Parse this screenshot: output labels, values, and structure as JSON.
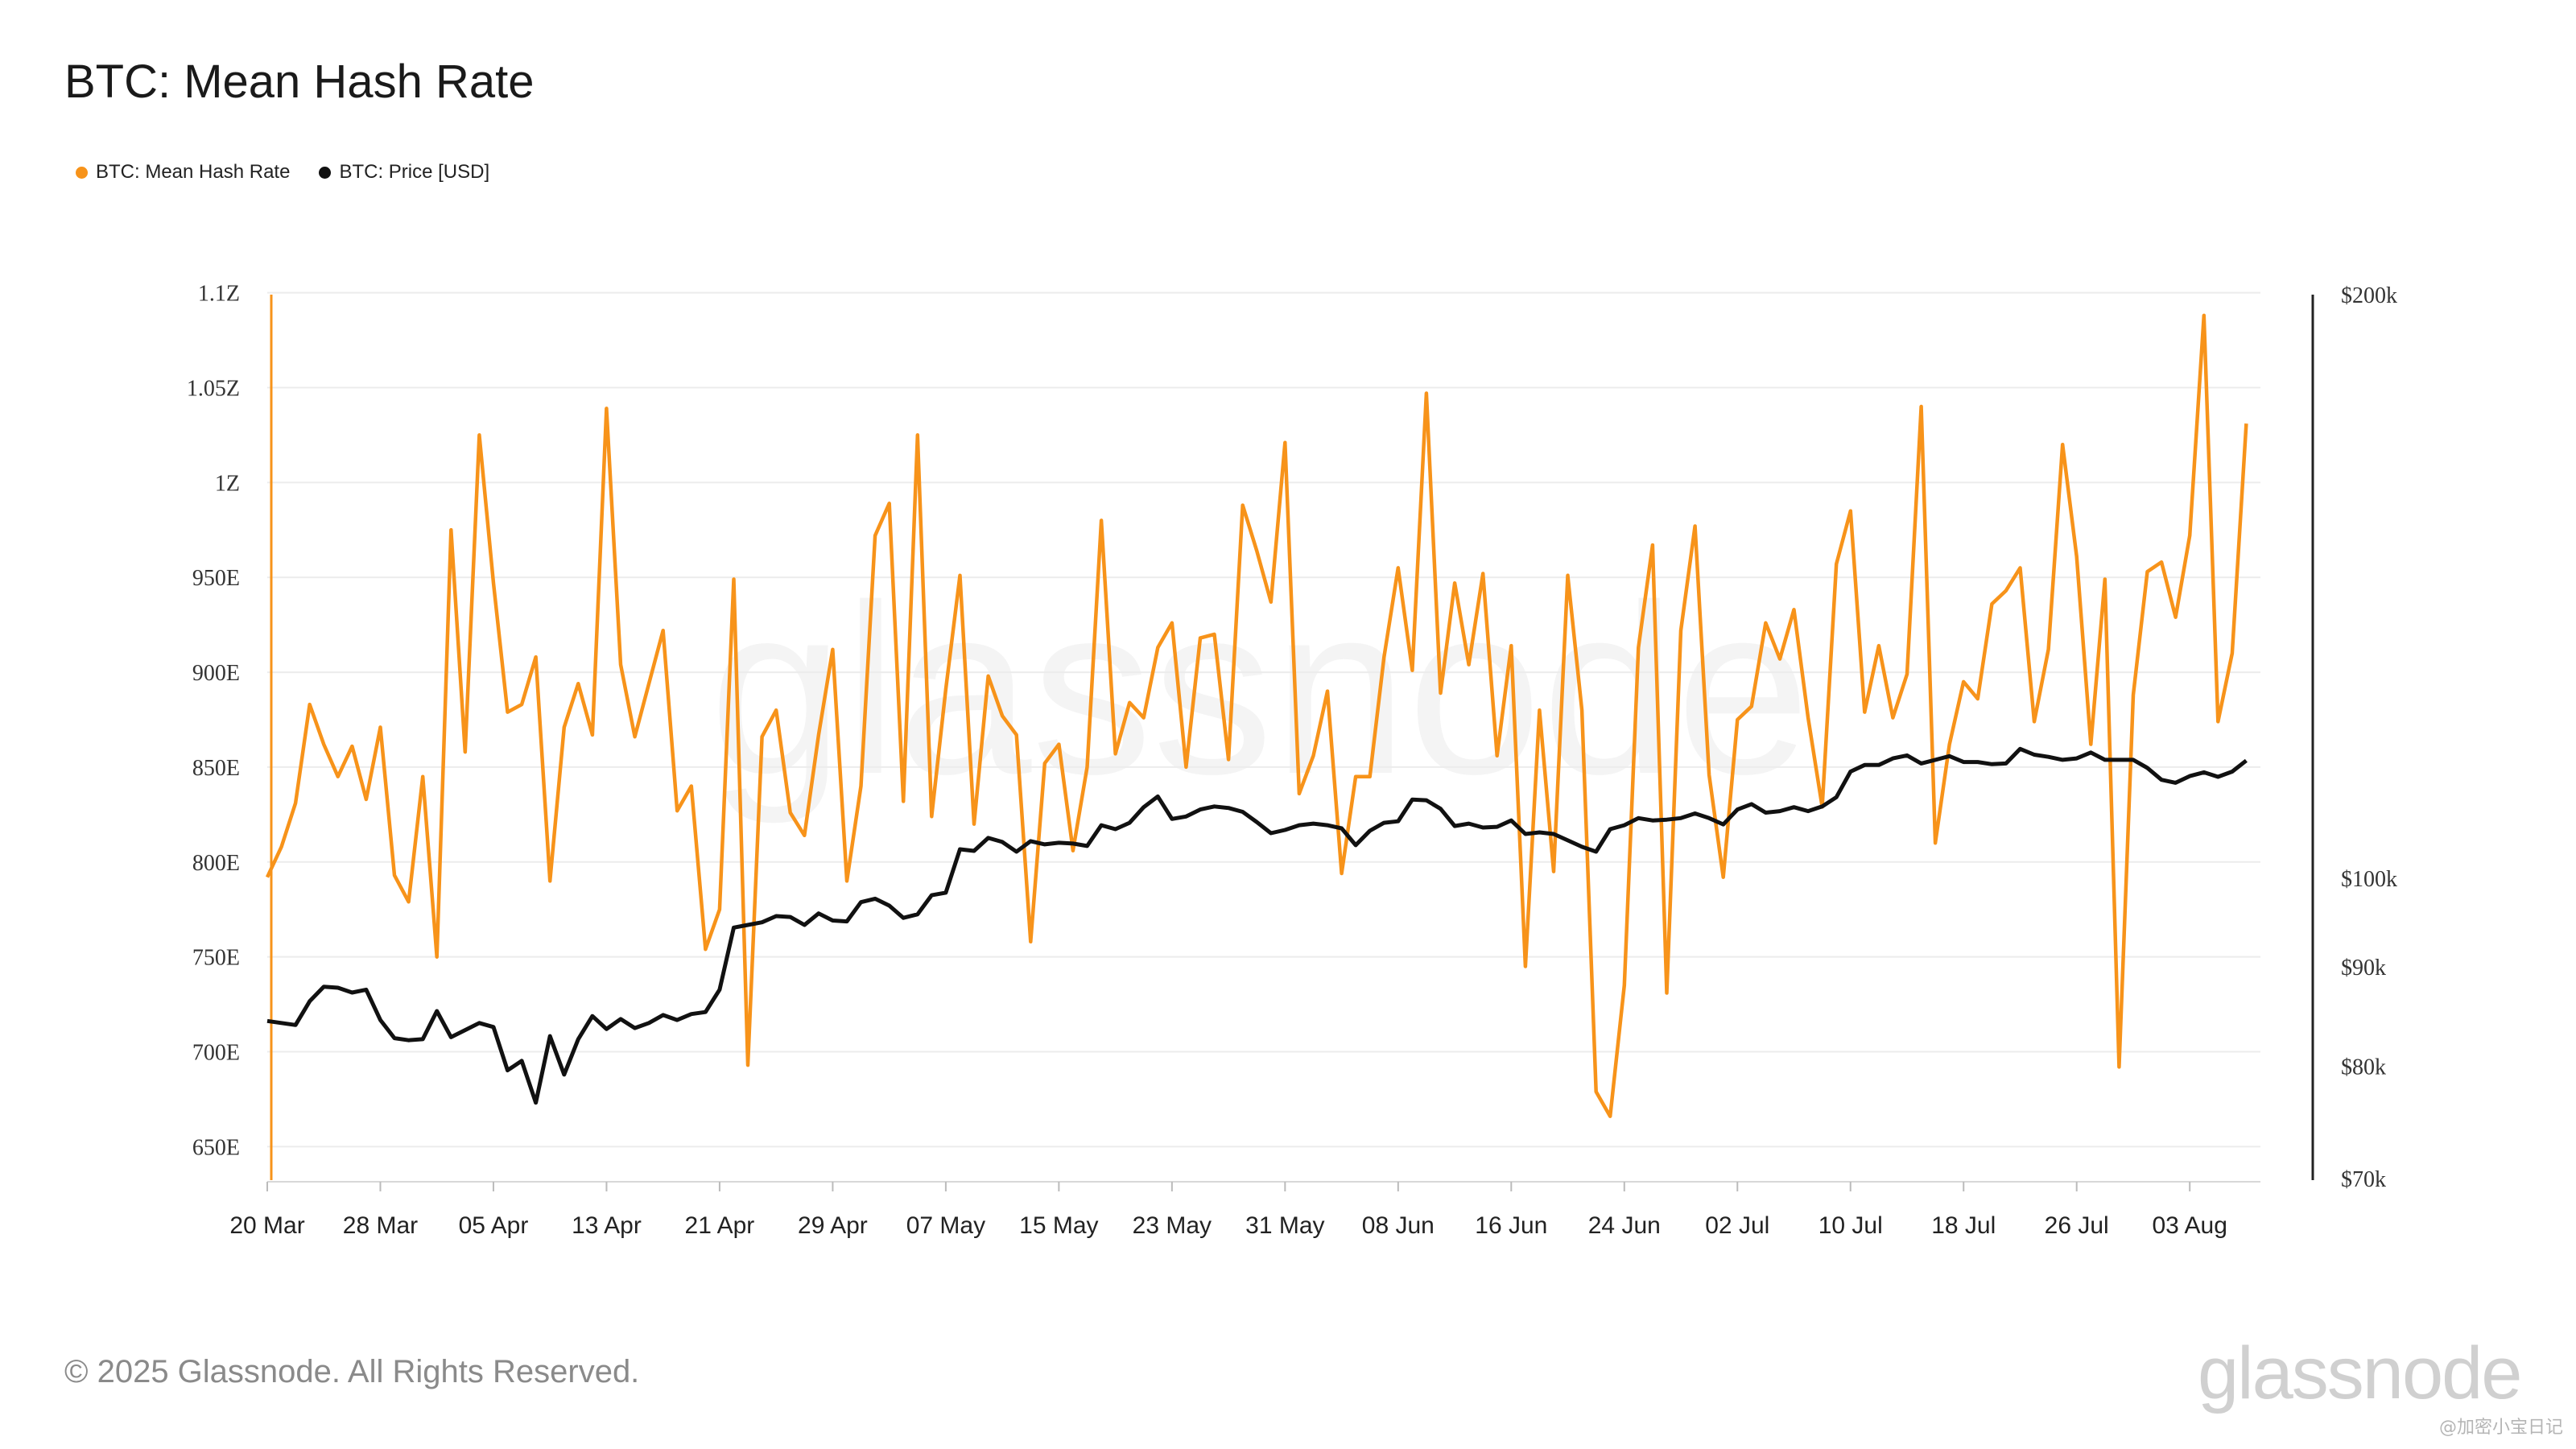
{
  "title": "BTC: Mean Hash Rate",
  "legend": [
    {
      "label": "BTC: Mean Hash Rate",
      "color": "#f7931a"
    },
    {
      "label": "BTC: Price [USD]",
      "color": "#111111"
    }
  ],
  "footer": {
    "copyright": "© 2025 Glassnode. All Rights Reserved.",
    "brand": "glassnode",
    "watermark_note": "@加密小宝日记"
  },
  "chart_data": {
    "type": "line",
    "x_start": "2025-03-20",
    "x_end": "2025-08-08",
    "x_ticks": [
      "20 Mar",
      "28 Mar",
      "05 Apr",
      "13 Apr",
      "21 Apr",
      "29 Apr",
      "07 May",
      "15 May",
      "23 May",
      "31 May",
      "08 Jun",
      "16 Jun",
      "24 Jun",
      "02 Jul",
      "10 Jul",
      "18 Jul",
      "26 Jul",
      "03 Aug"
    ],
    "y_left": {
      "ticks": [
        "650E",
        "700E",
        "750E",
        "800E",
        "850E",
        "900E",
        "950E",
        "1Z",
        "1.05Z",
        "1.1Z"
      ],
      "range_E": [
        640,
        1110
      ]
    },
    "y_right": {
      "ticks": [
        "$70k",
        "$80k",
        "$90k",
        "$100k",
        "$200k"
      ],
      "scale": "log",
      "range_usd": [
        70000,
        200000
      ]
    },
    "series": [
      {
        "name": "BTC: Mean Hash Rate",
        "color": "#f7931a",
        "unit": "EH/s",
        "values": [
          792,
          808,
          831,
          883,
          862,
          845,
          861,
          833,
          871,
          793,
          779,
          845,
          750,
          975,
          858,
          1025,
          947,
          879,
          883,
          908,
          790,
          871,
          894,
          867,
          1039,
          904,
          866,
          894,
          922,
          827,
          840,
          754,
          775,
          949,
          693,
          866,
          880,
          826,
          814,
          867,
          912,
          790,
          840,
          972,
          989,
          832,
          1025,
          824,
          891,
          951,
          820,
          898,
          877,
          867,
          758,
          852,
          862,
          806,
          850,
          980,
          857,
          884,
          876,
          913,
          926,
          850,
          918,
          920,
          854,
          988,
          964,
          937,
          1021,
          836,
          856,
          890,
          794,
          845,
          845,
          908,
          955,
          901,
          1047,
          889,
          947,
          904,
          952,
          856,
          914,
          745,
          880,
          795,
          951,
          880,
          679,
          666,
          735,
          913,
          967,
          731,
          922,
          977,
          846,
          792,
          875,
          882,
          926,
          907,
          933,
          876,
          829,
          957,
          985,
          879,
          914,
          876,
          899,
          1040,
          810,
          862,
          895,
          886,
          936,
          943,
          955,
          874,
          912,
          1020,
          961,
          862,
          949,
          692,
          888,
          953,
          958,
          929,
          972,
          1088,
          874,
          910,
          1031
        ]
      },
      {
        "name": "BTC: Price [USD]",
        "color": "#111111",
        "unit": "USD",
        "values": [
          84400,
          84200,
          84000,
          86400,
          87900,
          87800,
          87300,
          87600,
          84500,
          82700,
          82500,
          82600,
          85400,
          82800,
          83500,
          84200,
          83800,
          79600,
          80500,
          76600,
          82900,
          79200,
          82600,
          84900,
          83600,
          84600,
          83700,
          84200,
          85000,
          84500,
          85100,
          85300,
          87600,
          94300,
          94600,
          94900,
          95600,
          95500,
          94600,
          95900,
          95100,
          95000,
          97200,
          97600,
          96800,
          95400,
          95800,
          98000,
          98300,
          103500,
          103300,
          104900,
          104400,
          103200,
          104500,
          104100,
          104300,
          104200,
          103900,
          106500,
          106000,
          106800,
          108800,
          110200,
          107300,
          107600,
          108500,
          108900,
          108700,
          108200,
          106900,
          105500,
          105900,
          106500,
          106700,
          106500,
          106100,
          104000,
          105800,
          106800,
          107000,
          109800,
          109700,
          108600,
          106400,
          106700,
          106200,
          106300,
          107100,
          105400,
          105600,
          105400,
          104600,
          103800,
          103200,
          106000,
          106500,
          107400,
          107100,
          107200,
          107400,
          108000,
          107400,
          106600,
          108500,
          109200,
          108100,
          108300,
          108800,
          108300,
          108900,
          110100,
          113500,
          114400,
          114400,
          115300,
          115700,
          114600,
          115100,
          115600,
          114800,
          114800,
          114500,
          114600,
          116600,
          115800,
          115500,
          115100,
          115300,
          116100,
          115100,
          115100,
          115100,
          114000,
          112400,
          112000,
          112900,
          113400,
          112800,
          113500,
          115000
        ]
      }
    ]
  }
}
